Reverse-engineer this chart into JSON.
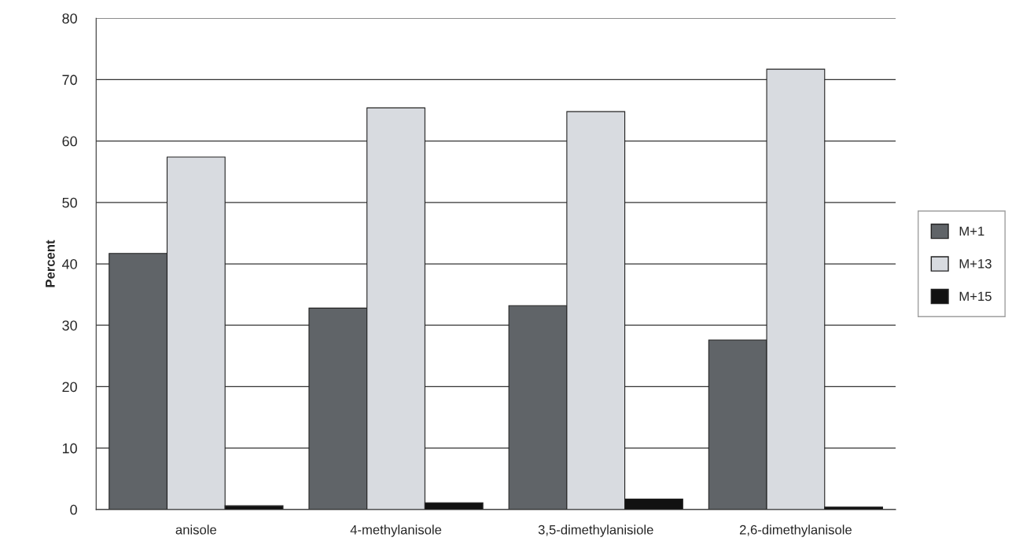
{
  "chart_data": {
    "type": "bar",
    "categories": [
      "anisole",
      "4-methylanisole",
      "3,5-dimethylanisiole",
      "2,6-dimethylanisole"
    ],
    "ylabel": "Percent",
    "series": [
      {
        "name": "M+1",
        "color": "#606468",
        "values": [
          41.7,
          32.8,
          33.2,
          27.6
        ]
      },
      {
        "name": "M+13",
        "color": "#d8dbe0",
        "values": [
          57.4,
          65.4,
          64.8,
          71.7
        ]
      },
      {
        "name": "M+15",
        "color": "#111111",
        "values": [
          0.6,
          1.1,
          1.7,
          0.4
        ]
      }
    ],
    "ylim": [
      0,
      80
    ],
    "yticks": [
      0,
      10,
      20,
      30,
      40,
      50,
      60,
      70,
      80
    ],
    "grid": "y",
    "legend": "right"
  }
}
